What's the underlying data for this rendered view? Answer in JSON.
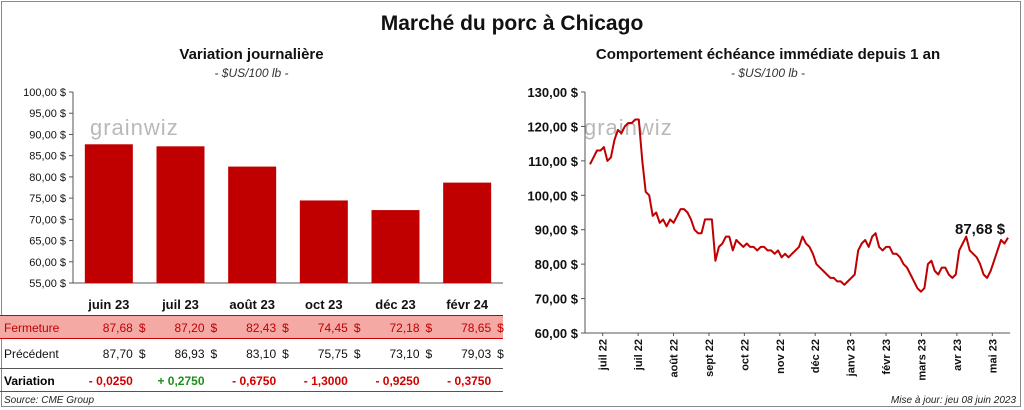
{
  "title": "Marché du porc à Chicago",
  "left_panel": {
    "title": "Variation  journalière",
    "subtitle": "- $US/100 lb -",
    "watermark": "grainwiz"
  },
  "right_panel": {
    "title": "Comportement  échéance  immédiate  depuis  1 an",
    "subtitle": "- $US/100 lb -",
    "watermark": "grainwiz",
    "last_value_label": "87,68 $"
  },
  "table": {
    "row_labels": {
      "fermeture": "Fermeture",
      "precedent": "Précédent",
      "variation": "Variation"
    },
    "dollar": "$",
    "fermeture": [
      "87,68",
      "87,20",
      "82,43",
      "74,45",
      "72,18",
      "78,65"
    ],
    "precedent": [
      "87,70",
      "86,93",
      "83,10",
      "75,75",
      "73,10",
      "79,03"
    ],
    "variation": [
      "- 0,0250",
      "+ 0,2750",
      "- 0,6750",
      "- 1,3000",
      "- 0,9250",
      "- 0,3750"
    ]
  },
  "footer": {
    "source": "Source: CME Group",
    "updated": "Mise à jour: jeu 08 juin 2023"
  },
  "colors": {
    "bar": "#c00000",
    "line": "#c00000",
    "positive": "#1e8f1e",
    "negative": "#d00000",
    "highlight_row": "#f4a9a5"
  },
  "chart_data": [
    {
      "type": "bar",
      "categories": [
        "juin 23",
        "juil 23",
        "août 23",
        "oct 23",
        "déc 23",
        "févr 24"
      ],
      "values": [
        87.68,
        87.2,
        82.43,
        74.45,
        72.18,
        78.65
      ],
      "ylim": [
        55,
        100
      ],
      "yticks": [
        55,
        60,
        65,
        70,
        75,
        80,
        85,
        90,
        95,
        100
      ],
      "ytick_labels": [
        "55,00 $",
        "60,00 $",
        "65,00 $",
        "70,00 $",
        "75,00 $",
        "80,00 $",
        "85,00 $",
        "90,00 $",
        "95,00 $",
        "100,00 $"
      ],
      "grid": false
    },
    {
      "type": "line",
      "x_tick_labels": [
        "juil 22",
        "juil 22",
        "août 22",
        "sept 22",
        "oct 22",
        "nov 22",
        "déc 22",
        "janv 23",
        "févr 23",
        "mars 23",
        "avr 23",
        "mai 23"
      ],
      "ylim": [
        60,
        130
      ],
      "yticks": [
        60,
        70,
        80,
        90,
        100,
        110,
        120,
        130
      ],
      "ytick_labels": [
        "60,00 $",
        "70,00 $",
        "80,00 $",
        "90,00 $",
        "100,00 $",
        "110,00 $",
        "120,00 $",
        "130,00 $"
      ],
      "values": [
        109,
        111,
        113,
        113,
        114,
        110,
        111,
        116,
        119,
        118,
        120,
        121,
        121,
        122,
        122,
        110,
        101,
        100,
        94,
        95,
        92,
        93,
        91,
        93,
        92,
        94,
        96,
        96,
        95,
        93,
        90,
        89,
        89,
        93,
        93,
        93,
        81,
        85,
        86,
        88,
        88,
        84,
        87,
        86,
        85,
        86,
        85,
        85,
        84,
        85,
        85,
        84,
        84,
        83,
        84,
        82,
        83,
        82,
        83,
        84,
        85,
        88,
        86,
        85,
        83,
        80,
        79,
        78,
        77,
        76,
        76,
        75,
        75,
        74,
        75,
        76,
        77,
        84,
        86,
        87,
        85,
        88,
        89,
        85,
        84,
        85,
        85,
        83,
        83,
        82,
        80,
        79,
        77,
        75,
        73,
        72,
        73,
        80,
        81,
        78,
        77,
        79,
        79,
        77,
        76,
        77,
        84,
        86,
        88,
        84,
        83,
        82,
        80,
        77,
        76,
        78,
        81,
        84,
        87,
        86,
        87.68
      ],
      "last_value": 87.68,
      "grid": false
    }
  ]
}
